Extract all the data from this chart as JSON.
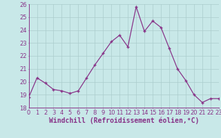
{
  "x": [
    0,
    1,
    2,
    3,
    4,
    5,
    6,
    7,
    8,
    9,
    10,
    11,
    12,
    13,
    14,
    15,
    16,
    17,
    18,
    19,
    20,
    21,
    22,
    23
  ],
  "y": [
    18.8,
    20.3,
    19.9,
    19.4,
    19.3,
    19.1,
    19.3,
    20.3,
    21.3,
    22.2,
    23.1,
    23.6,
    22.7,
    25.8,
    23.9,
    24.7,
    24.2,
    22.6,
    21.0,
    20.1,
    19.0,
    18.4,
    18.7,
    18.7
  ],
  "line_color": "#883388",
  "marker_color": "#883388",
  "bg_color": "#c8e8e8",
  "grid_color": "#aacccc",
  "xlabel": "Windchill (Refroidissement éolien,°C)",
  "ylim": [
    18,
    26
  ],
  "yticks": [
    18,
    19,
    20,
    21,
    22,
    23,
    24,
    25,
    26
  ],
  "xticks": [
    0,
    1,
    2,
    3,
    4,
    5,
    6,
    7,
    8,
    9,
    10,
    11,
    12,
    13,
    14,
    15,
    16,
    17,
    18,
    19,
    20,
    21,
    22,
    23
  ],
  "line_width": 0.9,
  "marker_size": 3.5,
  "xlabel_fontsize": 7.0,
  "tick_fontsize": 6.0,
  "tick_color": "#883388",
  "axis_color": "#883388"
}
